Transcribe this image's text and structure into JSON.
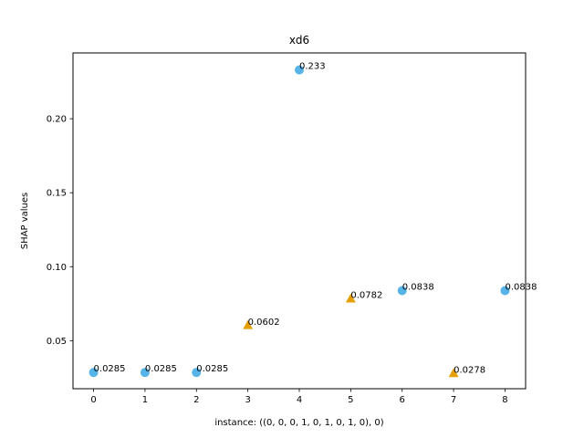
{
  "chart_data": {
    "type": "scatter",
    "title": "xd6",
    "xlabel": "instance: ((0, 0, 0, 1, 0, 1, 0, 1, 0), 0)",
    "ylabel": "SHAP values",
    "xlim": [
      -0.4,
      8.4
    ],
    "ylim": [
      0.0175,
      0.2445
    ],
    "xticks": [
      0,
      1,
      2,
      3,
      4,
      5,
      6,
      7,
      8
    ],
    "xtick_labels": [
      "0",
      "1",
      "2",
      "3",
      "4",
      "5",
      "6",
      "7",
      "8"
    ],
    "yticks": [
      0.05,
      0.1,
      0.15,
      0.2
    ],
    "ytick_labels": [
      "0.05",
      "0.10",
      "0.15",
      "0.20"
    ],
    "grid": false,
    "points": [
      {
        "x": 0,
        "y": 0.0285,
        "label": "0.0285",
        "marker": "circle",
        "color": "#56B4E9"
      },
      {
        "x": 1,
        "y": 0.0285,
        "label": "0.0285",
        "marker": "circle",
        "color": "#56B4E9"
      },
      {
        "x": 2,
        "y": 0.0285,
        "label": "0.0285",
        "marker": "circle",
        "color": "#56B4E9"
      },
      {
        "x": 3,
        "y": 0.0602,
        "label": "0.0602",
        "marker": "triangle",
        "color": "#E69F00"
      },
      {
        "x": 4,
        "y": 0.233,
        "label": "0.233",
        "marker": "circle",
        "color": "#56B4E9"
      },
      {
        "x": 5,
        "y": 0.0782,
        "label": "0.0782",
        "marker": "triangle",
        "color": "#E69F00"
      },
      {
        "x": 6,
        "y": 0.0838,
        "label": "0.0838",
        "marker": "circle",
        "color": "#56B4E9"
      },
      {
        "x": 7,
        "y": 0.0278,
        "label": "0.0278",
        "marker": "triangle",
        "color": "#E69F00"
      },
      {
        "x": 8,
        "y": 0.0838,
        "label": "0.0838",
        "marker": "circle",
        "color": "#56B4E9"
      }
    ]
  }
}
